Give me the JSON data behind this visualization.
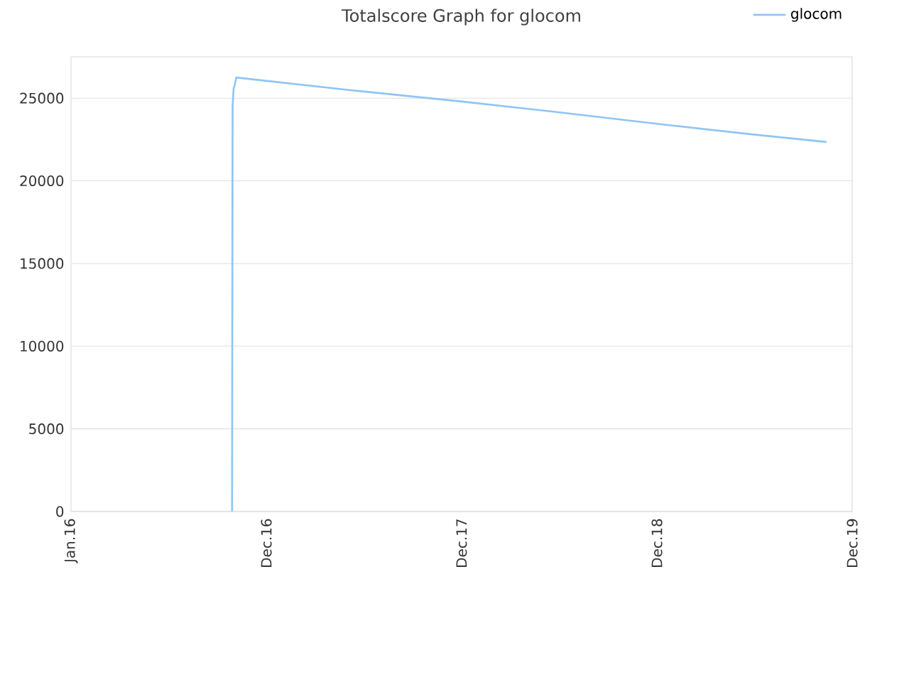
{
  "chart_data": {
    "type": "line",
    "title": "Totalscore Graph for glocom",
    "x": [
      "2016-10-28",
      "2016-10-29",
      "2016-10-31",
      "2016-11-02",
      "2016-11-05",
      "2017-06-01",
      "2017-12-31",
      "2018-06-30",
      "2018-12-31",
      "2019-06-30",
      "2019-11-13"
    ],
    "series": [
      {
        "name": "glocom",
        "color": "#90c4f5",
        "values": [
          0,
          24500,
          25600,
          25800,
          26250,
          25500,
          24800,
          24150,
          23450,
          22800,
          22350
        ]
      }
    ],
    "xlim": [
      "2016-01-01",
      "2019-12-31"
    ],
    "xticks": [
      {
        "value": "2016-01-01",
        "label": "Jan.16"
      },
      {
        "value": "2016-12-31",
        "label": "Dec.16"
      },
      {
        "value": "2017-12-31",
        "label": "Dec.17"
      },
      {
        "value": "2018-12-31",
        "label": "Dec.18"
      },
      {
        "value": "2019-12-31",
        "label": "Dec.19"
      }
    ],
    "ylim": [
      0,
      27500
    ],
    "yticks": [
      0,
      5000,
      10000,
      15000,
      20000,
      25000
    ],
    "grid": "y",
    "legend": "top right",
    "line_style": "solid",
    "marker": "none"
  }
}
